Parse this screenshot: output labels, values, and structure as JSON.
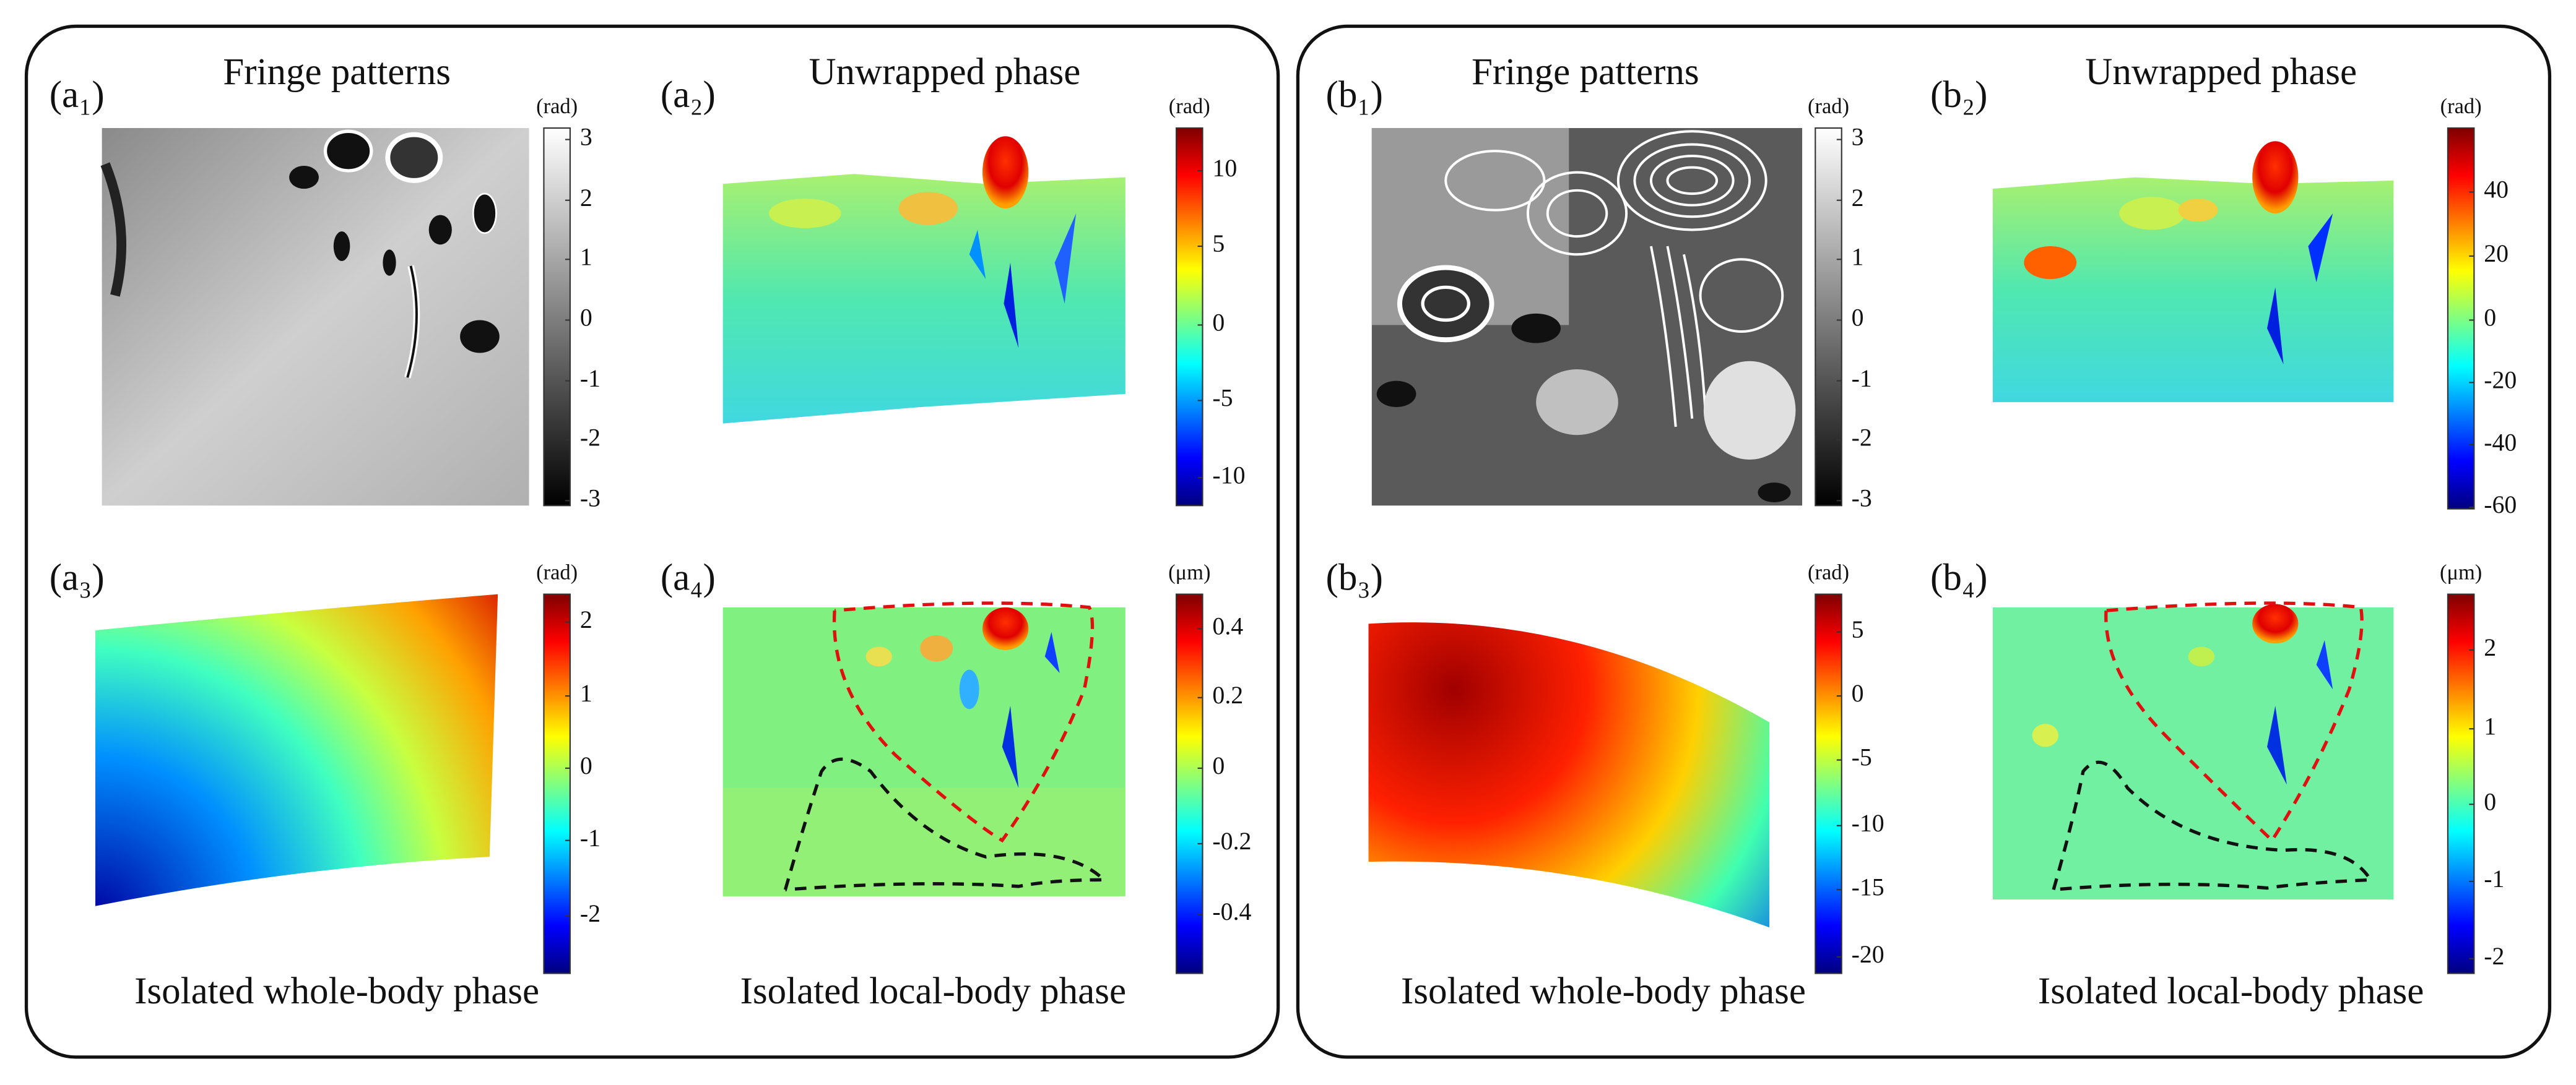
{
  "panels": [
    {
      "label": "(a₁)",
      "title": "Fringe patterns",
      "unit": "(rad)",
      "ticks": [
        3,
        2,
        1,
        0,
        -1,
        -2,
        -3
      ]
    },
    {
      "label": "(a₂)",
      "title": "Unwrapped phase",
      "unit": "(rad)",
      "ticks": [
        10,
        5,
        0,
        -5,
        -10
      ]
    },
    {
      "label": "(a₃)",
      "caption": "Isolated whole-body phase",
      "unit": "(rad)",
      "ticks": [
        2,
        1,
        0,
        -1,
        -2
      ]
    },
    {
      "label": "(a₄)",
      "caption": "Isolated local-body phase",
      "unit": "(μm)",
      "ticks": [
        0.4,
        0.2,
        0,
        -0.2,
        -0.4
      ]
    },
    {
      "label": "(b₁)",
      "title": "Fringe patterns",
      "unit": "(rad)",
      "ticks": [
        3,
        2,
        1,
        0,
        -1,
        -2,
        -3
      ]
    },
    {
      "label": "(b₂)",
      "title": "Unwrapped phase",
      "unit": "(rad)",
      "ticks": [
        40,
        20,
        0,
        -20,
        -40,
        -60
      ]
    },
    {
      "label": "(b₃)",
      "caption": "Isolated whole-body phase",
      "unit": "(rad)",
      "ticks": [
        5,
        0,
        -5,
        -10,
        -15,
        -20
      ]
    },
    {
      "label": "(b₄)",
      "caption": "Isolated local-body phase",
      "unit": "(μm)",
      "ticks": [
        2,
        1,
        0,
        -1,
        -2
      ]
    }
  ]
}
